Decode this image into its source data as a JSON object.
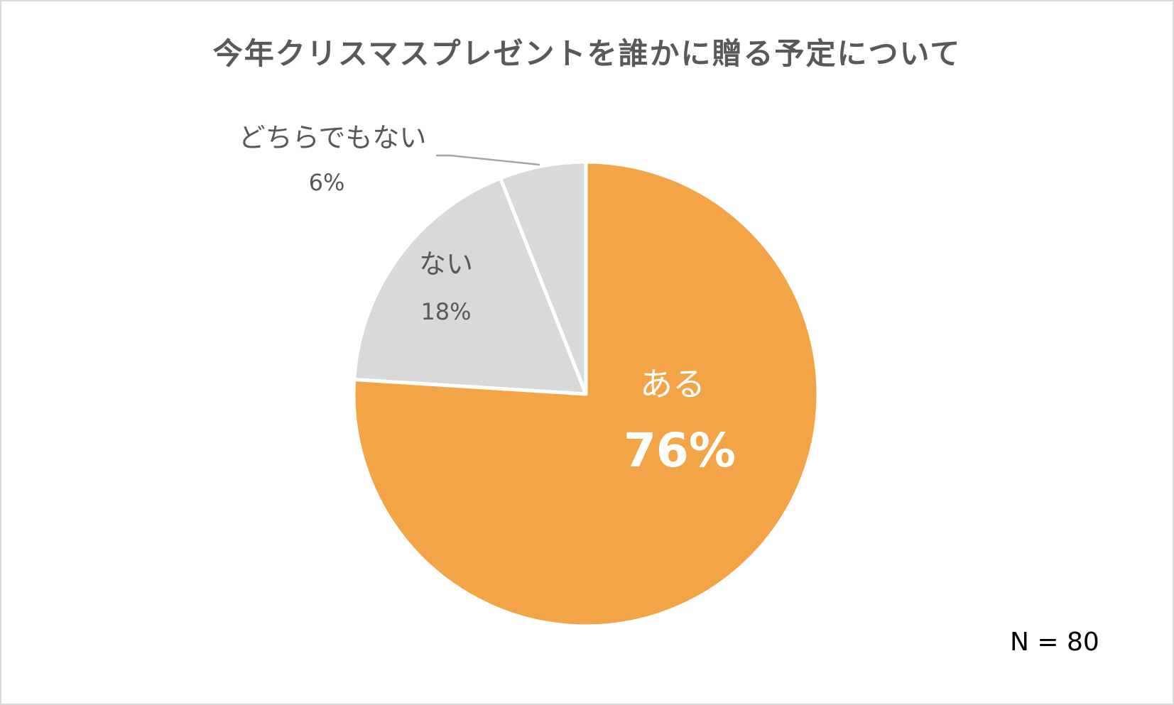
{
  "chart_data": {
    "type": "pie",
    "title": "今年クリスマスプレゼントを誰かに贈る予定について",
    "slices": [
      {
        "name": "ある",
        "value": 76,
        "value_label": "76%",
        "color": "#f2a446",
        "label_color": "#ffffff"
      },
      {
        "name": "ない",
        "value": 18,
        "value_label": "18%",
        "color": "#d9d9d9",
        "label_color": "#595959"
      },
      {
        "name": "どちらでもない",
        "value": 6,
        "value_label": "6%",
        "color": "#d9d9d9",
        "label_color": "#595959"
      }
    ],
    "start_angle_deg": 0,
    "direction": "clockwise",
    "slice_separator_color": "#ffffff",
    "leader_line_color": "#a6a6a6",
    "note": "N = 80"
  }
}
